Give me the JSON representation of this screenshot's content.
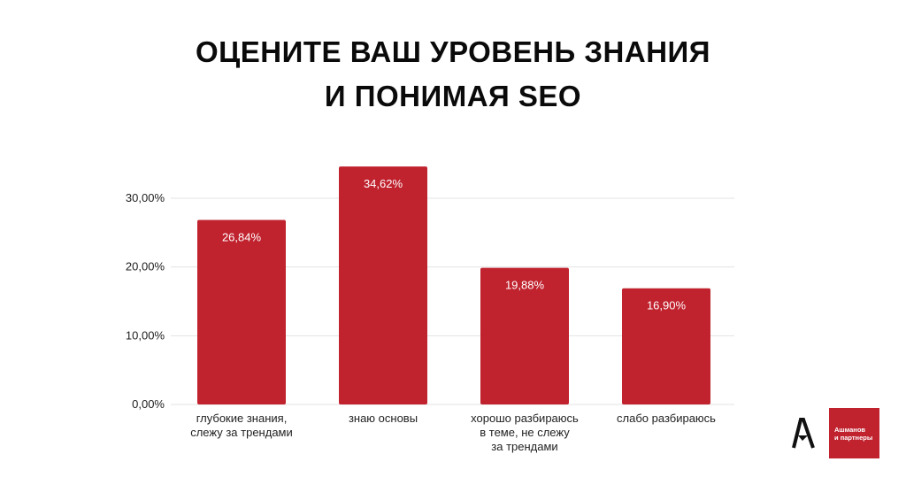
{
  "title": {
    "line1": "ОЦЕНИТЕ ВАШ УРОВЕНЬ ЗНАНИЯ",
    "line2": "И ПОНИМАЯ SEO"
  },
  "colors": {
    "bar": "#c0222e",
    "grid": "#e3e3e3",
    "logo_bg": "#c0222e"
  },
  "logo": {
    "icon": "a-letter-logo-icon",
    "line1": "Ашманов",
    "line2": "и партнеры"
  },
  "chart_data": {
    "type": "bar",
    "categories": [
      [
        "глубокие знания,",
        "слежу за трендами"
      ],
      [
        "знаю основы"
      ],
      [
        "хорошо разбираюсь",
        "в теме, не слежу",
        "за трендами"
      ],
      [
        "слабо разбираюсь"
      ]
    ],
    "values": [
      26.84,
      34.62,
      19.88,
      16.9
    ],
    "value_labels": [
      "26,84%",
      "34,62%",
      "19,88%",
      "16,90%"
    ],
    "yticks": [
      0,
      10,
      20,
      30
    ],
    "ytick_labels": [
      "0,00%",
      "10,00%",
      "20,00%",
      "30,00%"
    ],
    "ylim": [
      0,
      30
    ],
    "grid": true,
    "legend": "none"
  }
}
